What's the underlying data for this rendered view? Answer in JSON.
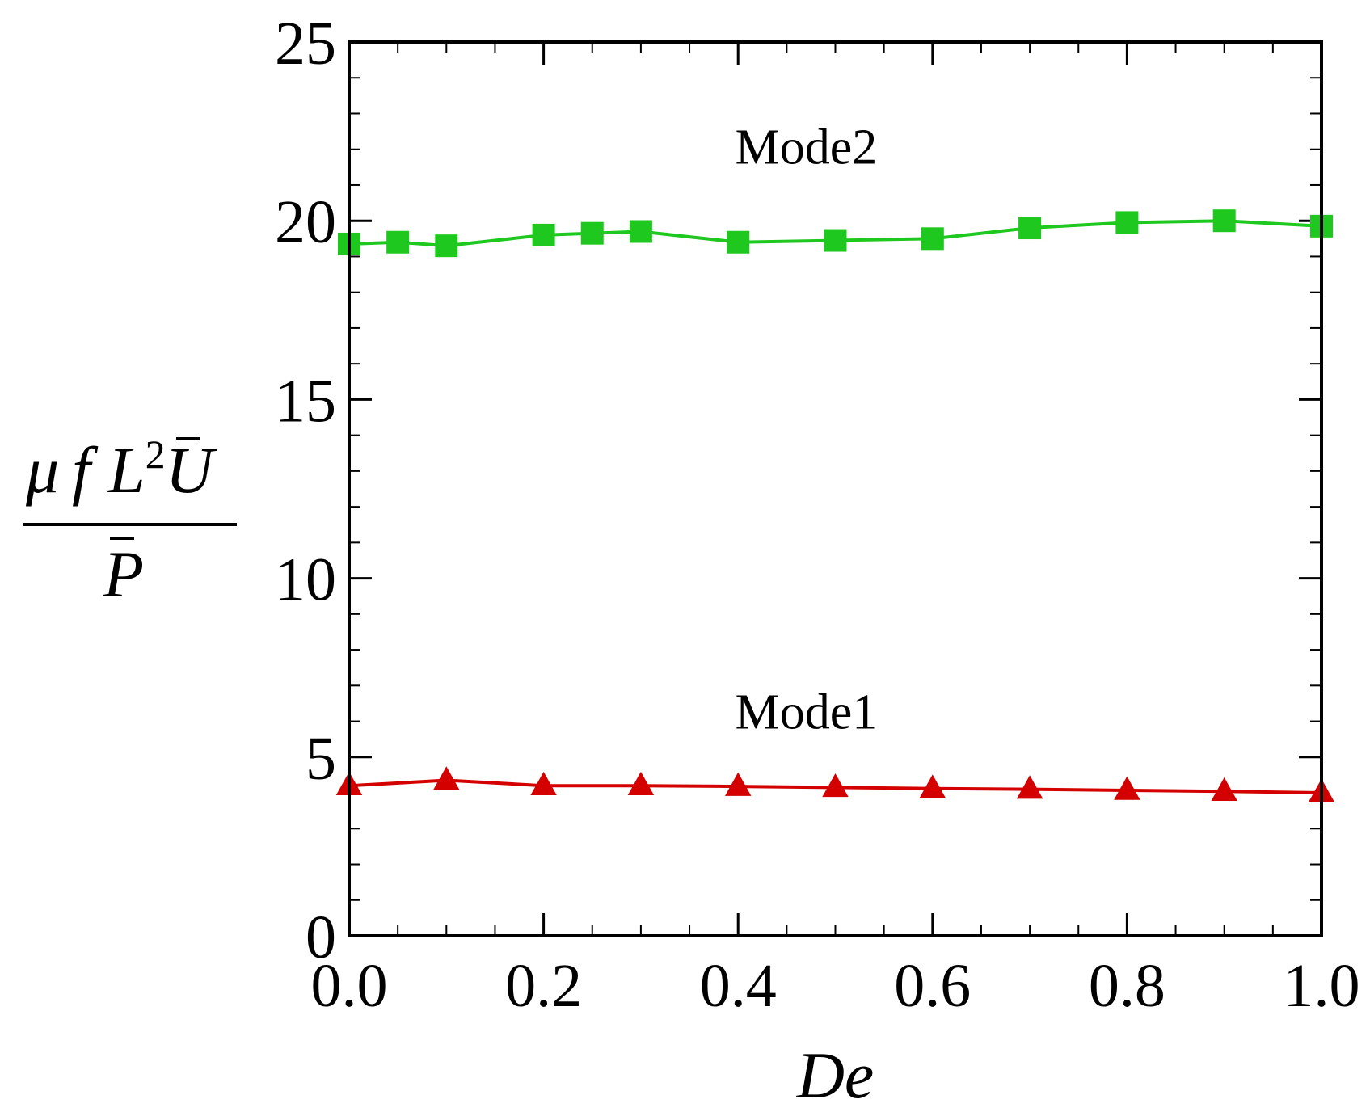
{
  "chart_data": {
    "type": "line",
    "title": "",
    "xlabel": "De",
    "ylabel": {
      "mu": "μ",
      "f": "f",
      "L": "L",
      "exp": "2",
      "U": "U",
      "P": "P"
    },
    "xlim": [
      0.0,
      1.0
    ],
    "ylim": [
      0,
      25
    ],
    "x_ticks": [
      "0.0",
      "0.2",
      "0.4",
      "0.6",
      "0.8",
      "1.0"
    ],
    "y_ticks": [
      "0",
      "5",
      "10",
      "15",
      "20",
      "25"
    ],
    "x_tick_values": [
      0.0,
      0.2,
      0.4,
      0.6,
      0.8,
      1.0
    ],
    "y_tick_values": [
      0,
      5,
      10,
      15,
      20,
      25
    ],
    "x_minor_step": 0.05,
    "y_minor_step": 1,
    "grid": false,
    "series": [
      {
        "name": "Mode2",
        "color": "#1ec81e",
        "marker": "square",
        "x": [
          0.0,
          0.05,
          0.1,
          0.2,
          0.25,
          0.3,
          0.4,
          0.5,
          0.6,
          0.7,
          0.8,
          0.9,
          1.0
        ],
        "values": [
          19.35,
          19.4,
          19.3,
          19.6,
          19.65,
          19.7,
          19.4,
          19.45,
          19.5,
          19.8,
          19.95,
          20.0,
          19.85
        ]
      },
      {
        "name": "Mode1",
        "color": "#d40000",
        "marker": "triangle",
        "x": [
          0.0,
          0.1,
          0.2,
          0.3,
          0.4,
          0.5,
          0.6,
          0.7,
          0.8,
          0.9,
          1.0
        ],
        "values": [
          4.2,
          4.35,
          4.2,
          4.2,
          4.18,
          4.15,
          4.12,
          4.1,
          4.07,
          4.04,
          4.0
        ]
      }
    ],
    "annotations": [
      "Mode2",
      "Mode1"
    ]
  }
}
